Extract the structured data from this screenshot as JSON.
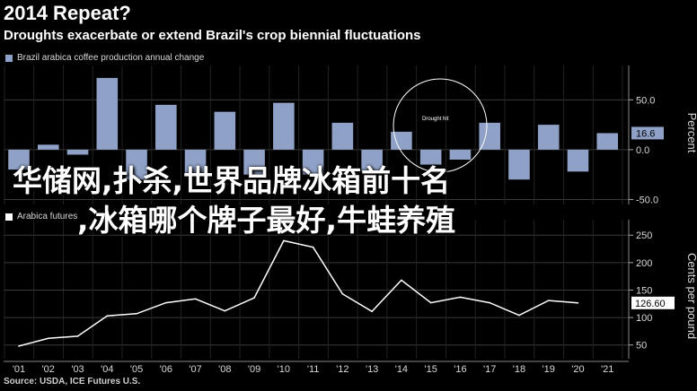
{
  "header": {
    "title": "2014 Repeat?",
    "subtitle": "Droughts exacerbate or extend Brazil's crop biennial fluctuations"
  },
  "overlay_text": {
    "line1": "华储网,扑杀,世界品牌冰箱前十名",
    "line2": ",冰箱哪个牌子最好,牛蛙养殖"
  },
  "source": "Source: USDA, ICE Futures U.S.",
  "colors": {
    "bar": "#8fa1c6",
    "line": "#ffffff",
    "background": "#000000",
    "grid": "#3a3a3a"
  },
  "chart_data": [
    {
      "type": "bar",
      "legend": "Brazil arabica coffee production annual change",
      "ylabel": "Percent",
      "categories": [
        "'01",
        "'02",
        "'03",
        "'04",
        "'05",
        "'06",
        "'07",
        "'08",
        "'09",
        "'10",
        "'11",
        "'12",
        "'13",
        "'14",
        "'15",
        "'16",
        "'17",
        "'18",
        "'19",
        "'20",
        "'21"
      ],
      "values": [
        -20,
        5,
        -5,
        72,
        -30,
        45,
        -25,
        38,
        -25,
        47,
        -25,
        27,
        -22,
        18,
        -15,
        -10,
        27,
        -30,
        25,
        -22,
        16.6
      ],
      "ylim": [
        -55,
        80
      ],
      "yticks": [
        "50.0",
        "0.0",
        "-50.0"
      ],
      "last_value_label": "16.6",
      "annotation": "Drought hit",
      "grid": true
    },
    {
      "type": "line",
      "legend": "Arabica futures",
      "ylabel": "Cents per pound",
      "x": [
        "'01",
        "'02",
        "'03",
        "'04",
        "'05",
        "'06",
        "'07",
        "'08",
        "'09",
        "'10",
        "'11",
        "'12",
        "'13",
        "'14",
        "'15",
        "'16",
        "'17",
        "'18",
        "'19",
        "'20"
      ],
      "values": [
        48,
        62,
        66,
        103,
        107,
        127,
        134,
        112,
        136,
        240,
        228,
        143,
        111,
        168,
        127,
        137,
        127,
        104,
        131,
        126.6
      ],
      "ylim": [
        25,
        270
      ],
      "yticks": [
        "250",
        "200",
        "150",
        "100",
        "50"
      ],
      "last_value_label": "126.60",
      "grid": true
    }
  ]
}
